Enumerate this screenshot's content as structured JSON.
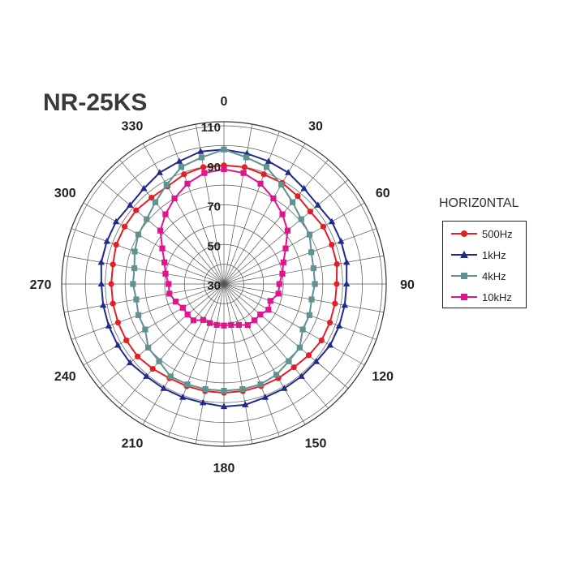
{
  "chart_data": {
    "type": "polar-line",
    "title": "NR-25KS",
    "angle_labels": [
      "0",
      "30",
      "60",
      "90",
      "120",
      "150",
      "180",
      "210",
      "240",
      "270",
      "300",
      "330"
    ],
    "radial_labels": [
      "30",
      "50",
      "70",
      "90",
      "110"
    ],
    "rlim": [
      30,
      110
    ],
    "angle_step": 10,
    "grid": true,
    "legend": {
      "title": "HORIZ0NTAL",
      "position": "right"
    },
    "series": [
      {
        "name": "500Hz",
        "color": "#e41e26",
        "marker": "circle",
        "angles": [
          0,
          10,
          20,
          30,
          40,
          50,
          60,
          70,
          80,
          90,
          100,
          110,
          120,
          130,
          140,
          150,
          160,
          170,
          180,
          190,
          200,
          210,
          220,
          230,
          240,
          250,
          260,
          270,
          280,
          290,
          300,
          310,
          320,
          330,
          340,
          350
        ],
        "values": [
          90,
          90,
          89,
          89,
          88,
          87,
          88,
          88,
          88,
          87,
          87,
          87,
          87,
          86,
          85,
          85,
          85,
          85,
          85,
          85,
          85,
          85,
          86,
          87,
          87,
          87,
          87,
          87,
          87,
          88,
          88,
          88,
          87,
          87,
          89,
          90
        ]
      },
      {
        "name": "1kHz",
        "color": "#1f2a8c",
        "marker": "triangle",
        "angles": [
          0,
          10,
          20,
          30,
          40,
          50,
          60,
          70,
          80,
          90,
          100,
          110,
          120,
          130,
          140,
          150,
          160,
          170,
          180,
          190,
          200,
          210,
          220,
          230,
          240,
          250,
          260,
          270,
          280,
          290,
          300,
          310,
          320,
          330,
          340,
          350
        ],
        "values": [
          98,
          97,
          96,
          95,
          93,
          92,
          93,
          93,
          93,
          92,
          92,
          92,
          92,
          91,
          91,
          91,
          91,
          92,
          92,
          91,
          91,
          91,
          91,
          92,
          92,
          92,
          92,
          92,
          93,
          93,
          93,
          92,
          93,
          95,
          96,
          98
        ]
      },
      {
        "name": "4kHz",
        "color": "#5f9291",
        "marker": "square",
        "angles": [
          0,
          10,
          20,
          30,
          40,
          50,
          60,
          70,
          80,
          90,
          100,
          110,
          120,
          130,
          140,
          150,
          160,
          170,
          180,
          190,
          200,
          210,
          220,
          230,
          240,
          250,
          260,
          270,
          280,
          290,
          300,
          310,
          320,
          330,
          340,
          350
        ],
        "values": [
          98,
          95,
          93,
          88,
          84,
          81,
          80,
          77,
          76,
          76,
          75,
          76,
          76,
          80,
          81,
          83,
          84,
          84,
          84,
          84,
          84,
          84,
          81,
          80,
          76,
          76,
          75,
          76,
          76,
          78,
          80,
          81,
          84,
          88,
          93,
          95
        ]
      },
      {
        "name": "10kHz",
        "color": "#e0148c",
        "marker": "square",
        "angles": [
          0,
          10,
          20,
          30,
          40,
          50,
          60,
          70,
          80,
          90,
          100,
          110,
          120,
          130,
          140,
          150,
          160,
          170,
          180,
          190,
          200,
          210,
          220,
          230,
          240,
          250,
          260,
          270,
          280,
          290,
          300,
          310,
          320,
          330,
          340,
          350
        ],
        "values": [
          88,
          87,
          84,
          80,
          76,
          72,
          66,
          62,
          60,
          58,
          58,
          55,
          56,
          54,
          54,
          54,
          52,
          51,
          51,
          51,
          51,
          51,
          54,
          54,
          54,
          56,
          58,
          58,
          60,
          62,
          66,
          72,
          76,
          80,
          84,
          87
        ]
      }
    ]
  }
}
